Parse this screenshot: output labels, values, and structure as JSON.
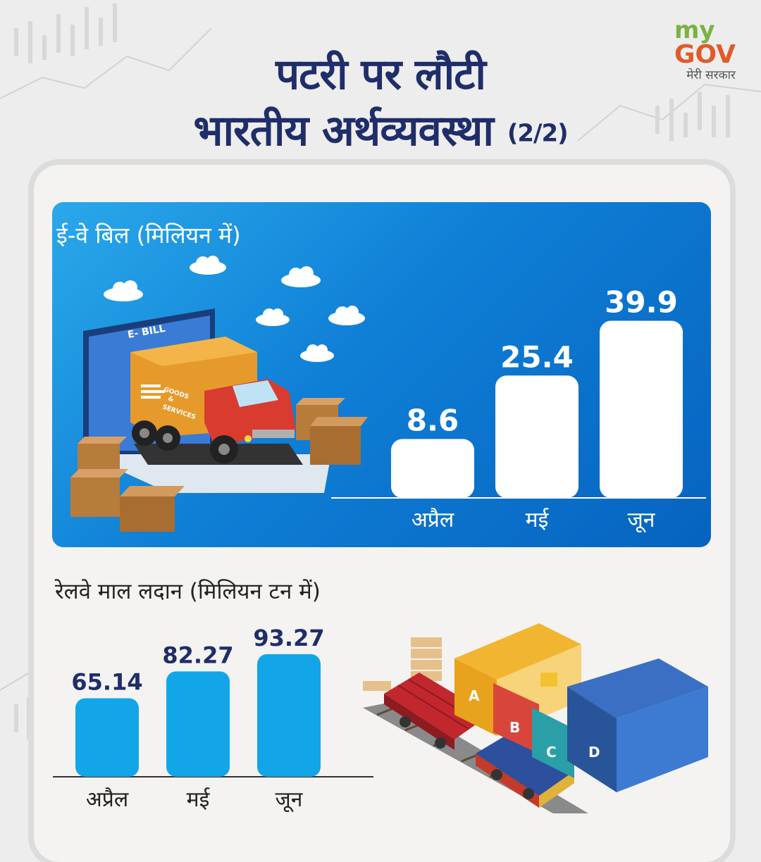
{
  "title": {
    "line1": "पटरी पर लौटी",
    "line2": "भारतीय अर्थव्यवस्था",
    "part": "(2/2)"
  },
  "logo": {
    "my": "my",
    "gov": "GOV",
    "tagline": "मेरी सरकार"
  },
  "illustration_text": {
    "screen_label": "E- BILL",
    "truck_text_1": "GOODS",
    "truck_text_2": "&",
    "truck_text_3": "SERVICES",
    "warehouse_letters": [
      "A",
      "B",
      "C",
      "D"
    ]
  },
  "colors": {
    "title": "#1f2d6a",
    "panel_blue": "#0f7fd6",
    "rail_bar": "#12a6e8",
    "rail_value": "#1f2d6a"
  },
  "chart_data": [
    {
      "type": "bar",
      "title": "ई-वे बिल (मिलियन में)",
      "categories": [
        "अप्रैल",
        "मई",
        "जून"
      ],
      "values": [
        8.6,
        25.4,
        39.9
      ],
      "value_labels": [
        "8.6",
        "25.4",
        "39.9"
      ],
      "ylim": [
        0,
        40
      ],
      "grid": false
    },
    {
      "type": "bar",
      "title": "रेलवे माल लदान  (मिलियन टन में)",
      "categories": [
        "अप्रैल",
        "मई",
        "जून"
      ],
      "values": [
        65.14,
        82.27,
        93.27
      ],
      "value_labels": [
        "65.14",
        "82.27",
        "93.27"
      ],
      "ylim": [
        0,
        95
      ],
      "grid": false
    }
  ]
}
